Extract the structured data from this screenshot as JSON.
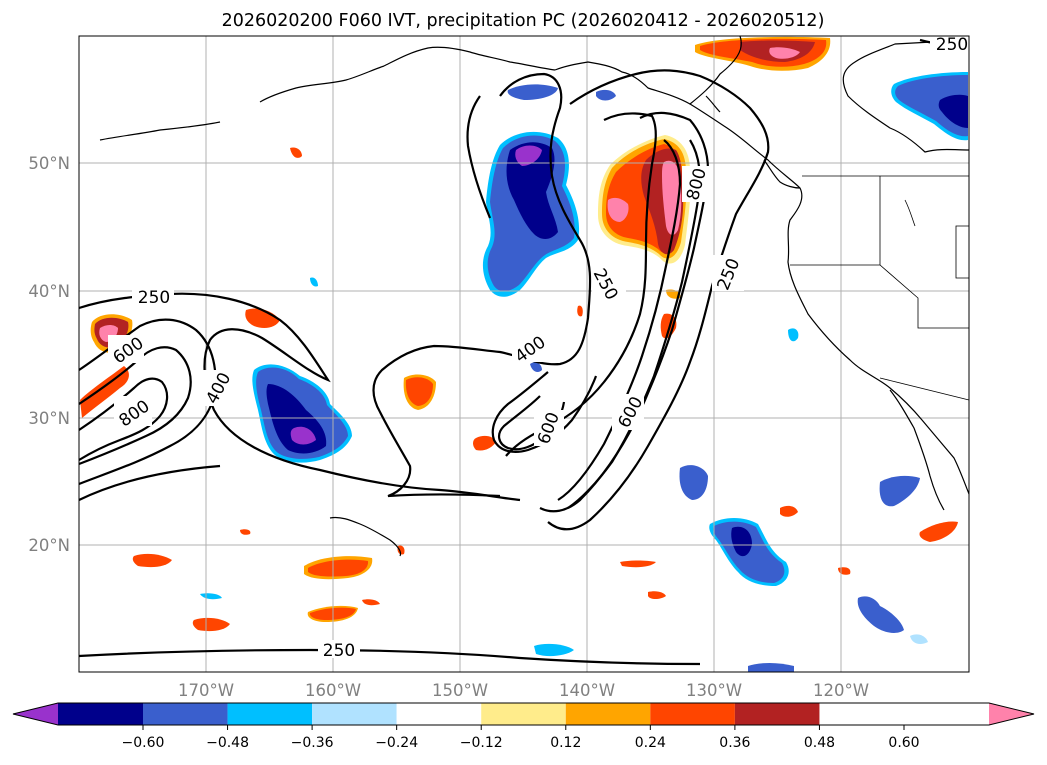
{
  "title": "2026020200 F060 IVT, precipitation PC (2026020412 - 2026020512)",
  "map": {
    "lon_range": [
      -180,
      -110
    ],
    "lat_range": [
      10,
      60
    ],
    "lat_labels": [
      "20°N",
      "30°N",
      "40°N",
      "50°N"
    ],
    "lon_labels": [
      "170°W",
      "160°W",
      "150°W",
      "140°W",
      "130°W",
      "120°W"
    ],
    "grid": true
  },
  "ivt_contours": {
    "levels": [
      250,
      400,
      600,
      800
    ],
    "labels": [
      "250",
      "250",
      "250",
      "250",
      "250",
      "400",
      "400",
      "600",
      "600",
      "600",
      "800",
      "800"
    ],
    "color": "#000000"
  },
  "colorbar": {
    "ticks": [
      "−0.60",
      "−0.48",
      "−0.36",
      "−0.24",
      "−0.12",
      "0.12",
      "0.24",
      "0.36",
      "0.48",
      "0.60"
    ],
    "colors": [
      "#9932cc",
      "#00008b",
      "#3a5fcd",
      "#00bfff",
      "#b0e2ff",
      "#ffffff",
      "#ffec8b",
      "#ffa500",
      "#ff4500",
      "#b22222",
      "#ff82ab"
    ],
    "extend": "both"
  },
  "precip_blobs": [
    {
      "level": 0.36,
      "color": "#ff4500"
    },
    {
      "level": 0.48,
      "color": "#b22222"
    },
    {
      "level": 0.6,
      "color": "#ff82ab"
    },
    {
      "level": -0.36,
      "color": "#3a5fcd"
    },
    {
      "level": -0.48,
      "color": "#00008b"
    },
    {
      "level": -0.6,
      "color": "#9932cc"
    },
    {
      "level": -0.24,
      "color": "#00bfff"
    }
  ]
}
